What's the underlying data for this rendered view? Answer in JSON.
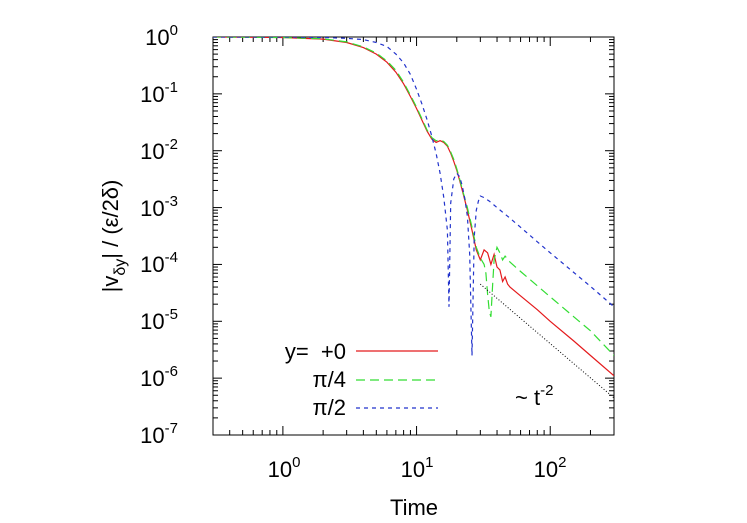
{
  "chart_data": {
    "type": "line",
    "x_scale": "log",
    "y_scale": "log",
    "xlim": [
      0.3,
      300
    ],
    "ylim": [
      1e-07,
      1
    ],
    "x_ticks": [
      {
        "value": 1,
        "base": "10",
        "exp": "0"
      },
      {
        "value": 10,
        "base": "10",
        "exp": "1"
      },
      {
        "value": 100,
        "base": "10",
        "exp": "2"
      }
    ],
    "y_ticks": [
      {
        "value": 1,
        "base": "10",
        "exp": "0"
      },
      {
        "value": 0.1,
        "base": "10",
        "exp": "-1"
      },
      {
        "value": 0.01,
        "base": "10",
        "exp": "-2"
      },
      {
        "value": 0.001,
        "base": "10",
        "exp": "-3"
      },
      {
        "value": 0.0001,
        "base": "10",
        "exp": "-4"
      },
      {
        "value": 1e-05,
        "base": "10",
        "exp": "-5"
      },
      {
        "value": 1e-06,
        "base": "10",
        "exp": "-6"
      },
      {
        "value": 1e-07,
        "base": "10",
        "exp": "-7"
      }
    ],
    "xlabel": "Time",
    "ylabel": {
      "a": "|v",
      "sub": "δy",
      "b": "| / (ε/2δ)"
    },
    "grid": false,
    "legend_position": "bottom-left",
    "series": [
      {
        "name": "y=  +0",
        "color": "#e41a1c",
        "dash": "none",
        "x": [
          0.3,
          1,
          2,
          3,
          4,
          5,
          6,
          7,
          8,
          9,
          10,
          11,
          12,
          13,
          14,
          15,
          16,
          17,
          18,
          19,
          20,
          21,
          22,
          24,
          26,
          28,
          30,
          32,
          34,
          36,
          38,
          40,
          42,
          44,
          46,
          48,
          50,
          60,
          80,
          100,
          150,
          200,
          300
        ],
        "y": [
          1,
          0.98,
          0.92,
          0.8,
          0.65,
          0.5,
          0.36,
          0.24,
          0.15,
          0.09,
          0.055,
          0.034,
          0.022,
          0.016,
          0.014,
          0.015,
          0.014,
          0.012,
          0.009,
          0.0065,
          0.0045,
          0.003,
          0.002,
          0.0009,
          0.0004,
          0.00018,
          0.00012,
          0.00018,
          0.00016,
          0.0001,
          0.00015,
          9e-05,
          8e-05,
          5e-05,
          6e-05,
          4.5e-05,
          4e-05,
          2.8e-05,
          1.6e-05,
          1e-05,
          4.5e-06,
          2.5e-06,
          1.1e-06
        ]
      },
      {
        "name": "π/4",
        "color": "#33dd33",
        "dash": "9,5",
        "x": [
          0.3,
          1,
          2,
          3,
          4,
          5,
          6,
          7,
          8,
          9,
          10,
          11,
          12,
          13,
          14,
          15,
          16,
          17,
          18,
          19,
          20,
          21,
          22,
          24,
          26,
          28,
          30,
          32,
          33,
          34,
          35,
          36,
          37,
          38,
          40,
          42,
          44,
          46,
          50,
          60,
          80,
          100,
          150,
          200,
          300
        ],
        "y": [
          1,
          0.98,
          0.93,
          0.82,
          0.67,
          0.52,
          0.38,
          0.26,
          0.16,
          0.095,
          0.058,
          0.036,
          0.023,
          0.017,
          0.015,
          0.0155,
          0.0145,
          0.0125,
          0.0095,
          0.007,
          0.0048,
          0.0032,
          0.0021,
          0.001,
          0.00045,
          0.0002,
          0.00013,
          0.0001,
          7e-05,
          3e-05,
          1.5e-05,
          1.2e-05,
          4e-05,
          0.00012,
          0.0002,
          0.00016,
          0.00012,
          0.00014,
          0.00011,
          7.5e-05,
          4.2e-05,
          2.7e-05,
          1.2e-05,
          6.8e-06,
          2.5e-06
        ]
      },
      {
        "name": "π/2",
        "color": "#2233cc",
        "dash": "4,4",
        "x": [
          0.3,
          1,
          2,
          3,
          4,
          5,
          6,
          7,
          8,
          9,
          10,
          11,
          12,
          13,
          14,
          15,
          16,
          17,
          17.5,
          18,
          19,
          20,
          21,
          22,
          23,
          24,
          25,
          26,
          27,
          28,
          29,
          30,
          32,
          35,
          40,
          50,
          60,
          80,
          100,
          150,
          200,
          300
        ],
        "y": [
          1,
          1,
          0.98,
          0.95,
          0.9,
          0.8,
          0.68,
          0.5,
          0.35,
          0.22,
          0.12,
          0.065,
          0.035,
          0.018,
          0.009,
          0.004,
          0.0015,
          0.0004,
          1.8e-05,
          0.0012,
          0.0032,
          0.004,
          0.0035,
          0.0024,
          0.0014,
          0.0007,
          0.00015,
          2.5e-06,
          0.0003,
          0.0009,
          0.0013,
          0.0016,
          0.0015,
          0.0013,
          0.001,
          0.00065,
          0.00045,
          0.00025,
          0.00016,
          7.2e-05,
          4.1e-05,
          1.8e-05
        ]
      },
      {
        "name": "",
        "color": "#000000",
        "dash": "1,2",
        "x": [
          30,
          300
        ],
        "y": [
          4.5e-05,
          4.5e-07
        ]
      }
    ],
    "annotations": [
      {
        "text": "~ t",
        "sup": "-2",
        "x": 80,
        "y": 2e-06
      }
    ]
  }
}
